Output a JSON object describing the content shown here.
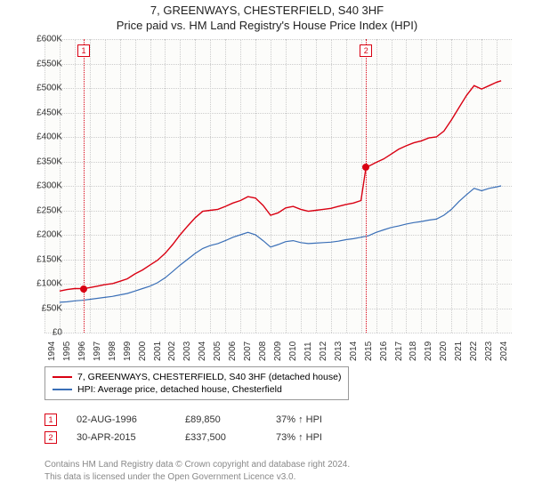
{
  "title_line1": "7, GREENWAYS, CHESTERFIELD, S40 3HF",
  "title_line2": "Price paid vs. HM Land Registry's House Price Index (HPI)",
  "chart": {
    "type": "line",
    "background_color": "#fcfcfa",
    "grid_color": "#cccccc",
    "x_years": [
      1994,
      1995,
      1996,
      1997,
      1998,
      1999,
      2000,
      2001,
      2002,
      2003,
      2004,
      2005,
      2006,
      2007,
      2008,
      2009,
      2010,
      2011,
      2012,
      2013,
      2014,
      2015,
      2016,
      2017,
      2018,
      2019,
      2020,
      2021,
      2022,
      2023,
      2024
    ],
    "xlim": [
      1994,
      2025
    ],
    "ylim": [
      0,
      600000
    ],
    "ytick_step": 50000,
    "ytick_labels": [
      "£0",
      "£50K",
      "£100K",
      "£150K",
      "£200K",
      "£250K",
      "£300K",
      "£350K",
      "£400K",
      "£450K",
      "£500K",
      "£550K",
      "£600K"
    ],
    "series": [
      {
        "name": "7, GREENWAYS, CHESTERFIELD, S40 3HF (detached house)",
        "color": "#d90012",
        "line_width": 1.4,
        "data": [
          [
            1995.0,
            85000
          ],
          [
            1995.5,
            88000
          ],
          [
            1996.0,
            90000
          ],
          [
            1996.6,
            89850
          ],
          [
            1997.0,
            92000
          ],
          [
            1997.5,
            95000
          ],
          [
            1998.0,
            98000
          ],
          [
            1998.5,
            100000
          ],
          [
            1999.0,
            105000
          ],
          [
            1999.5,
            110000
          ],
          [
            2000.0,
            120000
          ],
          [
            2000.5,
            128000
          ],
          [
            2001.0,
            138000
          ],
          [
            2001.5,
            148000
          ],
          [
            2002.0,
            162000
          ],
          [
            2002.5,
            180000
          ],
          [
            2003.0,
            200000
          ],
          [
            2003.5,
            218000
          ],
          [
            2004.0,
            235000
          ],
          [
            2004.5,
            248000
          ],
          [
            2005.0,
            250000
          ],
          [
            2005.5,
            252000
          ],
          [
            2006.0,
            258000
          ],
          [
            2006.5,
            265000
          ],
          [
            2007.0,
            270000
          ],
          [
            2007.5,
            278000
          ],
          [
            2008.0,
            275000
          ],
          [
            2008.5,
            260000
          ],
          [
            2009.0,
            240000
          ],
          [
            2009.5,
            245000
          ],
          [
            2010.0,
            255000
          ],
          [
            2010.5,
            258000
          ],
          [
            2011.0,
            252000
          ],
          [
            2011.5,
            248000
          ],
          [
            2012.0,
            250000
          ],
          [
            2012.5,
            252000
          ],
          [
            2013.0,
            254000
          ],
          [
            2013.5,
            258000
          ],
          [
            2014.0,
            262000
          ],
          [
            2014.5,
            265000
          ],
          [
            2015.0,
            270000
          ],
          [
            2015.33,
            337500
          ],
          [
            2015.5,
            340000
          ],
          [
            2016.0,
            348000
          ],
          [
            2016.5,
            355000
          ],
          [
            2017.0,
            365000
          ],
          [
            2017.5,
            375000
          ],
          [
            2018.0,
            382000
          ],
          [
            2018.5,
            388000
          ],
          [
            2019.0,
            392000
          ],
          [
            2019.5,
            398000
          ],
          [
            2020.0,
            400000
          ],
          [
            2020.5,
            412000
          ],
          [
            2021.0,
            435000
          ],
          [
            2021.5,
            460000
          ],
          [
            2022.0,
            485000
          ],
          [
            2022.5,
            505000
          ],
          [
            2023.0,
            498000
          ],
          [
            2023.5,
            505000
          ],
          [
            2024.0,
            512000
          ],
          [
            2024.3,
            515000
          ]
        ]
      },
      {
        "name": "HPI: Average price, detached house, Chesterfield",
        "color": "#3a6fb7",
        "line_width": 1.2,
        "data": [
          [
            1995.0,
            62000
          ],
          [
            1995.5,
            63000
          ],
          [
            1996.0,
            65000
          ],
          [
            1996.5,
            66000
          ],
          [
            1997.0,
            68000
          ],
          [
            1997.5,
            70000
          ],
          [
            1998.0,
            72000
          ],
          [
            1998.5,
            74000
          ],
          [
            1999.0,
            77000
          ],
          [
            1999.5,
            80000
          ],
          [
            2000.0,
            85000
          ],
          [
            2000.5,
            90000
          ],
          [
            2001.0,
            95000
          ],
          [
            2001.5,
            102000
          ],
          [
            2002.0,
            112000
          ],
          [
            2002.5,
            125000
          ],
          [
            2003.0,
            138000
          ],
          [
            2003.5,
            150000
          ],
          [
            2004.0,
            162000
          ],
          [
            2004.5,
            172000
          ],
          [
            2005.0,
            178000
          ],
          [
            2005.5,
            182000
          ],
          [
            2006.0,
            188000
          ],
          [
            2006.5,
            195000
          ],
          [
            2007.0,
            200000
          ],
          [
            2007.5,
            205000
          ],
          [
            2008.0,
            200000
          ],
          [
            2008.5,
            188000
          ],
          [
            2009.0,
            175000
          ],
          [
            2009.5,
            180000
          ],
          [
            2010.0,
            186000
          ],
          [
            2010.5,
            188000
          ],
          [
            2011.0,
            184000
          ],
          [
            2011.5,
            182000
          ],
          [
            2012.0,
            183000
          ],
          [
            2012.5,
            184000
          ],
          [
            2013.0,
            185000
          ],
          [
            2013.5,
            187000
          ],
          [
            2014.0,
            190000
          ],
          [
            2014.5,
            192000
          ],
          [
            2015.0,
            195000
          ],
          [
            2015.5,
            198000
          ],
          [
            2016.0,
            205000
          ],
          [
            2016.5,
            210000
          ],
          [
            2017.0,
            215000
          ],
          [
            2017.5,
            218000
          ],
          [
            2018.0,
            222000
          ],
          [
            2018.5,
            225000
          ],
          [
            2019.0,
            227000
          ],
          [
            2019.5,
            230000
          ],
          [
            2020.0,
            232000
          ],
          [
            2020.5,
            240000
          ],
          [
            2021.0,
            252000
          ],
          [
            2021.5,
            268000
          ],
          [
            2022.0,
            282000
          ],
          [
            2022.5,
            295000
          ],
          [
            2023.0,
            290000
          ],
          [
            2023.5,
            295000
          ],
          [
            2024.0,
            298000
          ],
          [
            2024.3,
            300000
          ]
        ]
      }
    ],
    "markers": [
      {
        "n": "1",
        "year": 1996.6,
        "value": 89850,
        "color": "#d90012"
      },
      {
        "n": "2",
        "year": 2015.33,
        "value": 337500,
        "color": "#d90012"
      }
    ]
  },
  "legend": {
    "items": [
      {
        "color": "#d90012",
        "label": "7, GREENWAYS, CHESTERFIELD, S40 3HF (detached house)"
      },
      {
        "color": "#3a6fb7",
        "label": "HPI: Average price, detached house, Chesterfield"
      }
    ]
  },
  "sales": [
    {
      "n": "1",
      "color": "#d90012",
      "date": "02-AUG-1996",
      "price": "£89,850",
      "pct": "37% ↑ HPI"
    },
    {
      "n": "2",
      "color": "#d90012",
      "date": "30-APR-2015",
      "price": "£337,500",
      "pct": "73% ↑ HPI"
    }
  ],
  "footer_line1": "Contains HM Land Registry data © Crown copyright and database right 2024.",
  "footer_line2": "This data is licensed under the Open Government Licence v3.0."
}
